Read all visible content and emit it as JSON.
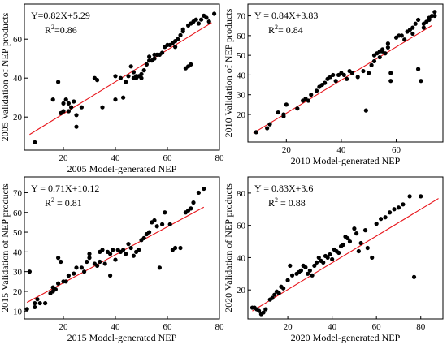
{
  "chart_data": [
    {
      "type": "scatter",
      "xlabel": "2005 Model-generated NEP",
      "ylabel": "2005 Validation of NEP products",
      "equation": "Y=0.82X+5.29",
      "r2_prefix": "R",
      "r2_value": "=0.86",
      "xlim": [
        5,
        80
      ],
      "ylim": [
        3,
        78
      ],
      "xticks": [
        "20",
        "40",
        "60",
        "80"
      ],
      "yticks": [
        "20",
        "40",
        "60"
      ],
      "xtick_values": [
        20,
        40,
        60,
        80
      ],
      "ytick_values": [
        20,
        40,
        60
      ],
      "fit": {
        "slope": 0.82,
        "intercept": 5.29,
        "x_range": [
          7,
          77
        ]
      },
      "points": [
        [
          9,
          7
        ],
        [
          16,
          29
        ],
        [
          18,
          38
        ],
        [
          19,
          22
        ],
        [
          20,
          23
        ],
        [
          20,
          27
        ],
        [
          21,
          29
        ],
        [
          22,
          23
        ],
        [
          22,
          27
        ],
        [
          23,
          25
        ],
        [
          24,
          28
        ],
        [
          25,
          21
        ],
        [
          25,
          15
        ],
        [
          27,
          25
        ],
        [
          32,
          40
        ],
        [
          33,
          39
        ],
        [
          35,
          25
        ],
        [
          40,
          29
        ],
        [
          40,
          41
        ],
        [
          42,
          40
        ],
        [
          43,
          30
        ],
        [
          44,
          38
        ],
        [
          45,
          41
        ],
        [
          46,
          46
        ],
        [
          47,
          40
        ],
        [
          47,
          43
        ],
        [
          48,
          41
        ],
        [
          48,
          40
        ],
        [
          49,
          41
        ],
        [
          50,
          42
        ],
        [
          50,
          40
        ],
        [
          51,
          44
        ],
        [
          52,
          47
        ],
        [
          53,
          49
        ],
        [
          53,
          51
        ],
        [
          54,
          49
        ],
        [
          55,
          50
        ],
        [
          55,
          52
        ],
        [
          56,
          52
        ],
        [
          57,
          52
        ],
        [
          58,
          53
        ],
        [
          59,
          56
        ],
        [
          60,
          57
        ],
        [
          61,
          57
        ],
        [
          62,
          58
        ],
        [
          63,
          56
        ],
        [
          63,
          59
        ],
        [
          64,
          60
        ],
        [
          65,
          62
        ],
        [
          66,
          65
        ],
        [
          66,
          64
        ],
        [
          67,
          45
        ],
        [
          68,
          46
        ],
        [
          69,
          47
        ],
        [
          68,
          67
        ],
        [
          69,
          68
        ],
        [
          70,
          69
        ],
        [
          71,
          70
        ],
        [
          72,
          68
        ],
        [
          73,
          70
        ],
        [
          74,
          72
        ],
        [
          75,
          71
        ],
        [
          76,
          69
        ],
        [
          78,
          73
        ]
      ]
    },
    {
      "type": "scatter",
      "xlabel": "2010 Model-generated NEP",
      "ylabel": "2010 Validation of NEP products",
      "equation": "Y = 0.84X+3.83",
      "r2_prefix": "R",
      "r2_value": "= 0.84",
      "xlim": [
        6,
        77
      ],
      "ylim": [
        6,
        76
      ],
      "xticks": [
        "20",
        "40",
        "60"
      ],
      "yticks": [
        "20",
        "30",
        "40",
        "50",
        "60",
        "70"
      ],
      "xtick_values": [
        20,
        40,
        60
      ],
      "ytick_values": [
        20,
        30,
        40,
        50,
        60,
        70
      ],
      "fit": {
        "slope": 0.84,
        "intercept": 3.83,
        "x_range": [
          8,
          73
        ]
      },
      "points": [
        [
          9,
          11
        ],
        [
          13,
          13
        ],
        [
          14,
          15
        ],
        [
          17,
          21
        ],
        [
          19,
          19
        ],
        [
          19,
          20
        ],
        [
          20,
          25
        ],
        [
          24,
          23
        ],
        [
          26,
          27
        ],
        [
          27,
          28
        ],
        [
          28,
          27
        ],
        [
          29,
          30
        ],
        [
          31,
          32
        ],
        [
          32,
          34
        ],
        [
          33,
          35
        ],
        [
          34,
          36
        ],
        [
          35,
          38
        ],
        [
          36,
          39
        ],
        [
          37,
          40
        ],
        [
          38,
          37
        ],
        [
          39,
          40
        ],
        [
          40,
          41
        ],
        [
          41,
          40
        ],
        [
          42,
          38
        ],
        [
          43,
          42
        ],
        [
          44,
          41
        ],
        [
          46,
          39
        ],
        [
          48,
          42
        ],
        [
          49,
          22
        ],
        [
          50,
          41
        ],
        [
          51,
          45
        ],
        [
          52,
          47
        ],
        [
          52,
          50
        ],
        [
          53,
          51
        ],
        [
          54,
          52
        ],
        [
          54,
          49
        ],
        [
          55,
          53
        ],
        [
          55,
          52
        ],
        [
          56,
          51
        ],
        [
          57,
          54
        ],
        [
          57,
          56
        ],
        [
          58,
          37
        ],
        [
          58,
          41
        ],
        [
          60,
          59
        ],
        [
          61,
          60
        ],
        [
          62,
          60
        ],
        [
          63,
          58
        ],
        [
          64,
          62
        ],
        [
          65,
          63
        ],
        [
          66,
          64
        ],
        [
          66,
          61
        ],
        [
          67,
          66
        ],
        [
          68,
          68
        ],
        [
          68,
          43
        ],
        [
          69,
          37
        ],
        [
          70,
          66
        ],
        [
          70,
          64
        ],
        [
          71,
          67
        ],
        [
          72,
          69
        ],
        [
          72,
          68
        ],
        [
          73,
          70
        ],
        [
          74,
          72
        ],
        [
          74,
          70
        ]
      ]
    },
    {
      "type": "scatter",
      "xlabel": "2015 Model-generated NEP",
      "ylabel": "2015 Validation of NEP products",
      "equation": "Y = 0.71X+10.12",
      "r2_prefix": "R",
      "r2_value": " = 0.81",
      "xlim": [
        5,
        80
      ],
      "ylim": [
        6,
        78
      ],
      "xticks": [
        "20",
        "40",
        "60",
        "80"
      ],
      "yticks": [
        "10",
        "20",
        "30",
        "40",
        "50",
        "60",
        "70"
      ],
      "xtick_values": [
        20,
        40,
        60,
        80
      ],
      "ytick_values": [
        10,
        20,
        30,
        40,
        50,
        60,
        70
      ],
      "fit": {
        "slope": 0.71,
        "intercept": 10.12,
        "x_range": [
          6,
          74
        ]
      },
      "points": [
        [
          6,
          11
        ],
        [
          7,
          30
        ],
        [
          9,
          12
        ],
        [
          9,
          14
        ],
        [
          10,
          16
        ],
        [
          11,
          14
        ],
        [
          13,
          14
        ],
        [
          15,
          19
        ],
        [
          16,
          20
        ],
        [
          16,
          22
        ],
        [
          17,
          21
        ],
        [
          18,
          37
        ],
        [
          18,
          24
        ],
        [
          19,
          35
        ],
        [
          20,
          25
        ],
        [
          21,
          25
        ],
        [
          22,
          28
        ],
        [
          24,
          29
        ],
        [
          25,
          32
        ],
        [
          27,
          32
        ],
        [
          28,
          30
        ],
        [
          29,
          35
        ],
        [
          30,
          39
        ],
        [
          30,
          37
        ],
        [
          32,
          34
        ],
        [
          33,
          33
        ],
        [
          34,
          35
        ],
        [
          34,
          40
        ],
        [
          35,
          41
        ],
        [
          36,
          34
        ],
        [
          37,
          40
        ],
        [
          38,
          39
        ],
        [
          38,
          28
        ],
        [
          39,
          41
        ],
        [
          40,
          36
        ],
        [
          41,
          41
        ],
        [
          42,
          40
        ],
        [
          43,
          41
        ],
        [
          44,
          39
        ],
        [
          45,
          44
        ],
        [
          46,
          42
        ],
        [
          47,
          38
        ],
        [
          48,
          40
        ],
        [
          49,
          41
        ],
        [
          50,
          46
        ],
        [
          51,
          47
        ],
        [
          52,
          49
        ],
        [
          53,
          50
        ],
        [
          54,
          55
        ],
        [
          55,
          56
        ],
        [
          56,
          53
        ],
        [
          57,
          32
        ],
        [
          58,
          54
        ],
        [
          59,
          60
        ],
        [
          61,
          54
        ],
        [
          62,
          41
        ],
        [
          63,
          42
        ],
        [
          65,
          42
        ],
        [
          67,
          60
        ],
        [
          68,
          61
        ],
        [
          69,
          62
        ],
        [
          70,
          65
        ],
        [
          72,
          70
        ],
        [
          74,
          72
        ]
      ]
    },
    {
      "type": "scatter",
      "xlabel": "2020 Model-generated NEP",
      "ylabel": "2020 Validation of NEP products",
      "equation": "Y = 0.83X+3.6",
      "r2_prefix": "R",
      "r2_value": " = 0.88",
      "xlim": [
        2,
        90
      ],
      "ylim": [
        2,
        90
      ],
      "xticks": [
        "20",
        "40",
        "60",
        "80"
      ],
      "yticks": [
        "20",
        "40",
        "60",
        "80"
      ],
      "xtick_values": [
        20,
        40,
        60,
        80
      ],
      "ytick_values": [
        20,
        40,
        60,
        80
      ],
      "fit": {
        "slope": 0.83,
        "intercept": 3.6,
        "x_range": [
          4,
          88
        ]
      },
      "points": [
        [
          4,
          9
        ],
        [
          5,
          9
        ],
        [
          6,
          8
        ],
        [
          7,
          7
        ],
        [
          8,
          5
        ],
        [
          9,
          6
        ],
        [
          10,
          8
        ],
        [
          12,
          14
        ],
        [
          13,
          15
        ],
        [
          14,
          17
        ],
        [
          15,
          19
        ],
        [
          16,
          18
        ],
        [
          17,
          22
        ],
        [
          18,
          21
        ],
        [
          20,
          26
        ],
        [
          21,
          35
        ],
        [
          22,
          29
        ],
        [
          24,
          30
        ],
        [
          25,
          31
        ],
        [
          26,
          32
        ],
        [
          27,
          35
        ],
        [
          28,
          34
        ],
        [
          29,
          30
        ],
        [
          30,
          32
        ],
        [
          31,
          29
        ],
        [
          32,
          35
        ],
        [
          33,
          37
        ],
        [
          34,
          40
        ],
        [
          35,
          38
        ],
        [
          36,
          37
        ],
        [
          37,
          41
        ],
        [
          38,
          40
        ],
        [
          39,
          42
        ],
        [
          40,
          39
        ],
        [
          41,
          45
        ],
        [
          42,
          44
        ],
        [
          43,
          43
        ],
        [
          44,
          47
        ],
        [
          45,
          48
        ],
        [
          46,
          53
        ],
        [
          47,
          52
        ],
        [
          48,
          50
        ],
        [
          50,
          58
        ],
        [
          51,
          55
        ],
        [
          52,
          44
        ],
        [
          53,
          49
        ],
        [
          55,
          57
        ],
        [
          56,
          46
        ],
        [
          58,
          40
        ],
        [
          60,
          61
        ],
        [
          62,
          64
        ],
        [
          64,
          65
        ],
        [
          66,
          68
        ],
        [
          68,
          70
        ],
        [
          70,
          71
        ],
        [
          72,
          73
        ],
        [
          75,
          78
        ],
        [
          77,
          28
        ],
        [
          80,
          78
        ]
      ]
    }
  ]
}
